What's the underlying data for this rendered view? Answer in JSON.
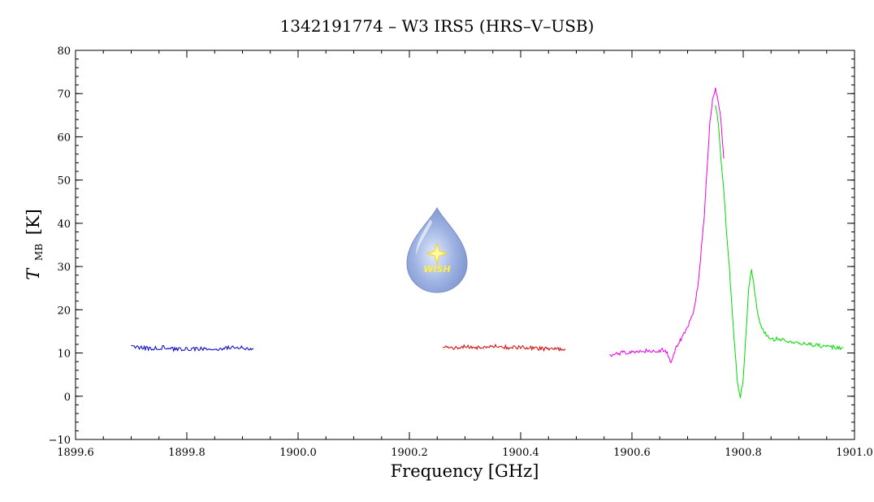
{
  "chart_data": {
    "type": "line",
    "title": "1342191774 – W3 IRS5 (HRS–V–USB)",
    "xlabel": "Frequency [GHz]",
    "ylabel_main": "T",
    "ylabel_sub": "MB",
    "ylabel_unit": "[K]",
    "xlim": [
      1899.6,
      1901.0
    ],
    "ylim": [
      -10,
      80
    ],
    "xticks": [
      1899.6,
      1899.8,
      1900.0,
      1900.2,
      1900.4,
      1900.6,
      1900.8,
      1901.0
    ],
    "xtick_labels": [
      "1899.6",
      "1899.8",
      "1900.0",
      "1900.2",
      "1900.4",
      "1900.6",
      "1900.8",
      "1901.0"
    ],
    "yticks": [
      -10,
      0,
      10,
      20,
      30,
      40,
      50,
      60,
      70,
      80
    ],
    "ytick_labels": [
      "−10",
      "0",
      "10",
      "20",
      "30",
      "40",
      "50",
      "60",
      "70",
      "80"
    ],
    "grid": false,
    "logo": {
      "text": "WISH"
    },
    "series": [
      {
        "color": "#0000cc",
        "x": [
          1899.7,
          1899.72,
          1899.74,
          1899.76,
          1899.78,
          1899.8,
          1899.82,
          1899.84,
          1899.86,
          1899.88,
          1899.9,
          1899.92
        ],
        "y": [
          11.6,
          11.2,
          11.0,
          11.3,
          10.8,
          10.9,
          11.0,
          10.8,
          11.0,
          11.3,
          11.2,
          11.0
        ]
      },
      {
        "color": "#dd0000",
        "x": [
          1900.26,
          1900.28,
          1900.3,
          1900.32,
          1900.34,
          1900.36,
          1900.38,
          1900.4,
          1900.42,
          1900.44,
          1900.46,
          1900.48
        ],
        "y": [
          11.4,
          11.2,
          11.5,
          11.3,
          11.4,
          11.6,
          11.2,
          11.4,
          11.1,
          11.0,
          10.8,
          11.0
        ]
      },
      {
        "color": "#ee00ee",
        "x": [
          1900.56,
          1900.58,
          1900.6,
          1900.62,
          1900.64,
          1900.66,
          1900.665,
          1900.67,
          1900.68,
          1900.69,
          1900.7,
          1900.71,
          1900.72,
          1900.73,
          1900.74,
          1900.745,
          1900.75,
          1900.755,
          1900.76,
          1900.765
        ],
        "y": [
          9.5,
          10.0,
          10.3,
          10.5,
          10.4,
          10.8,
          9.5,
          8.0,
          11.5,
          13.5,
          16.0,
          19.0,
          27.0,
          42.0,
          63.0,
          69.0,
          71.2,
          68.0,
          64.0,
          55.0
        ]
      },
      {
        "color": "#00dd00",
        "x": [
          1900.75,
          1900.755,
          1900.76,
          1900.765,
          1900.77,
          1900.775,
          1900.78,
          1900.785,
          1900.79,
          1900.795,
          1900.8,
          1900.805,
          1900.81,
          1900.815,
          1900.82,
          1900.825,
          1900.83,
          1900.84,
          1900.85,
          1900.86,
          1900.88,
          1900.9,
          1900.92,
          1900.94,
          1900.96,
          1900.98
        ],
        "y": [
          67.0,
          63.5,
          55.0,
          48.0,
          38.0,
          30.0,
          20.0,
          11.0,
          3.0,
          0.0,
          4.0,
          15.0,
          25.0,
          29.0,
          25.0,
          20.0,
          17.0,
          14.5,
          13.0,
          13.3,
          12.8,
          12.3,
          12.0,
          11.6,
          11.4,
          11.2
        ]
      }
    ]
  }
}
